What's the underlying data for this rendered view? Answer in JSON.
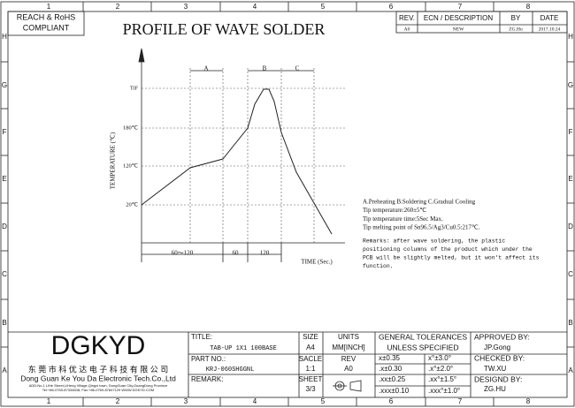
{
  "border": {
    "columns": [
      "1",
      "2",
      "3",
      "4",
      "5",
      "6",
      "7",
      "8"
    ],
    "rows": [
      "H",
      "G",
      "F",
      "E",
      "D",
      "C",
      "B",
      "A"
    ]
  },
  "compliance": [
    "REACH & RoHS",
    "COMPLIANT"
  ],
  "title": "PROFILE OF WAVE SOLDER",
  "revision_table": {
    "headers": [
      "REV.",
      "ECN / DESCRIPTION",
      "BY",
      "DATE"
    ],
    "rows": [
      [
        "A0",
        "NEW",
        "ZG.Hu",
        "2017.10.24"
      ]
    ]
  },
  "profile": {
    "y_axis_label": "TEMPERATURE (℃)",
    "y_labels": [
      "TiF",
      "180℃",
      "120℃",
      "20℃"
    ],
    "x_axis_label": "TIME (Sec.)",
    "zones": [
      "A",
      "B",
      "C"
    ],
    "durations": [
      "60～120",
      "60",
      "120"
    ]
  },
  "notes": [
    "A.Preheating  B.Soldering  C.Gradual Cooling",
    "Tip temperature:260±5℃",
    "Tip temperature time:5Sec Max.",
    "Tip melting point of Sn96.5/Ag3/Cu0.5:217℃."
  ],
  "remarks": [
    "Remarks: after wave soldering, the plastic",
    "positioning columns of the product  which under the",
    "PCB will be slightly melted, but it won't affect its",
    "function."
  ],
  "title_block": {
    "logo": "DGKYD",
    "company_cn": "东 莞 市 科 优 达 电 子 科 技 有 限 公 司",
    "company_en": "Dong Guan Ke You Da Electronic Tech.Co.,Ltd",
    "address": [
      "ADD:No.1 LiHe Street,LiHeng Village,Qingxi town, DongGuan City,GuangDong Province",
      "Tel:+86-0769-87334608; Fax:+86-0769-87847129  WWW.DGKYD.COM"
    ],
    "title_label": "TITLE:",
    "title_value": "TAB-UP 1X1 100BASE",
    "part_label": "PART NO.:",
    "part_value": "KRJ-060SHGGNL",
    "remark_label": "REMARK:",
    "size_label": "SIZE",
    "size": "A4",
    "scale_label": "SACLE",
    "scale": "1:1",
    "sheet_label": "SHEET",
    "sheet": "3/3",
    "units_label": "UNITS",
    "units": "MM[INCH]",
    "rev_label": "REV",
    "rev": "A0",
    "tolerances_title": [
      "GENERAL TOLERANCES",
      "UNLESS SPECIFIED"
    ],
    "tolerances": [
      [
        "x±0.35",
        "x°±3.0°"
      ],
      [
        ".x±0.30",
        ".x°±2.0°"
      ],
      [
        ".xx±0.25",
        ".xx°±1.5°"
      ],
      [
        ".xxx±0.10",
        ".xxx°±1.0°"
      ]
    ],
    "approvals": [
      {
        "label": "APPROVED BY:",
        "name": "JP.Gong"
      },
      {
        "label": "CHECKED BY:",
        "name": "TW.XU"
      },
      {
        "label": "DESIGND BY:",
        "name": "ZG.HU"
      }
    ]
  }
}
